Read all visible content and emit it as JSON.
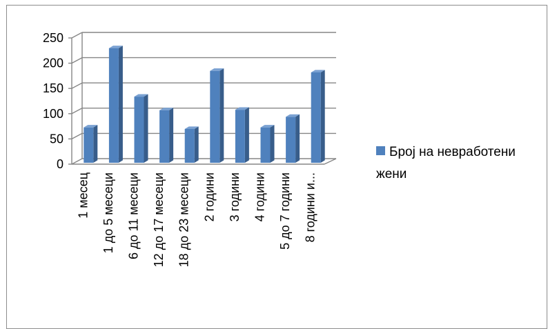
{
  "chart_data": {
    "type": "bar",
    "categories": [
      "1 месец",
      "1 до 5 месеци",
      "6 до 11 месеци",
      "12 до 17 месеци",
      "18 до 23 месеци",
      "2 години",
      "3 години",
      "4 години",
      "5 до 7 години",
      "8 години и..."
    ],
    "series": [
      {
        "name": "Број на невработени жени",
        "values": [
          70,
          227,
          131,
          104,
          67,
          182,
          105,
          70,
          91,
          179
        ]
      }
    ],
    "ylim": [
      0,
      250
    ],
    "yticks": [
      0,
      50,
      100,
      150,
      200,
      250
    ],
    "grid": true,
    "legend_position": "right",
    "style": "3d-column"
  },
  "colors": {
    "bar_front": "#4f81bd",
    "bar_side": "#385d8a",
    "bar_top": "#7aa1d2",
    "grid": "#868686",
    "frame": "#8c8c8c"
  }
}
